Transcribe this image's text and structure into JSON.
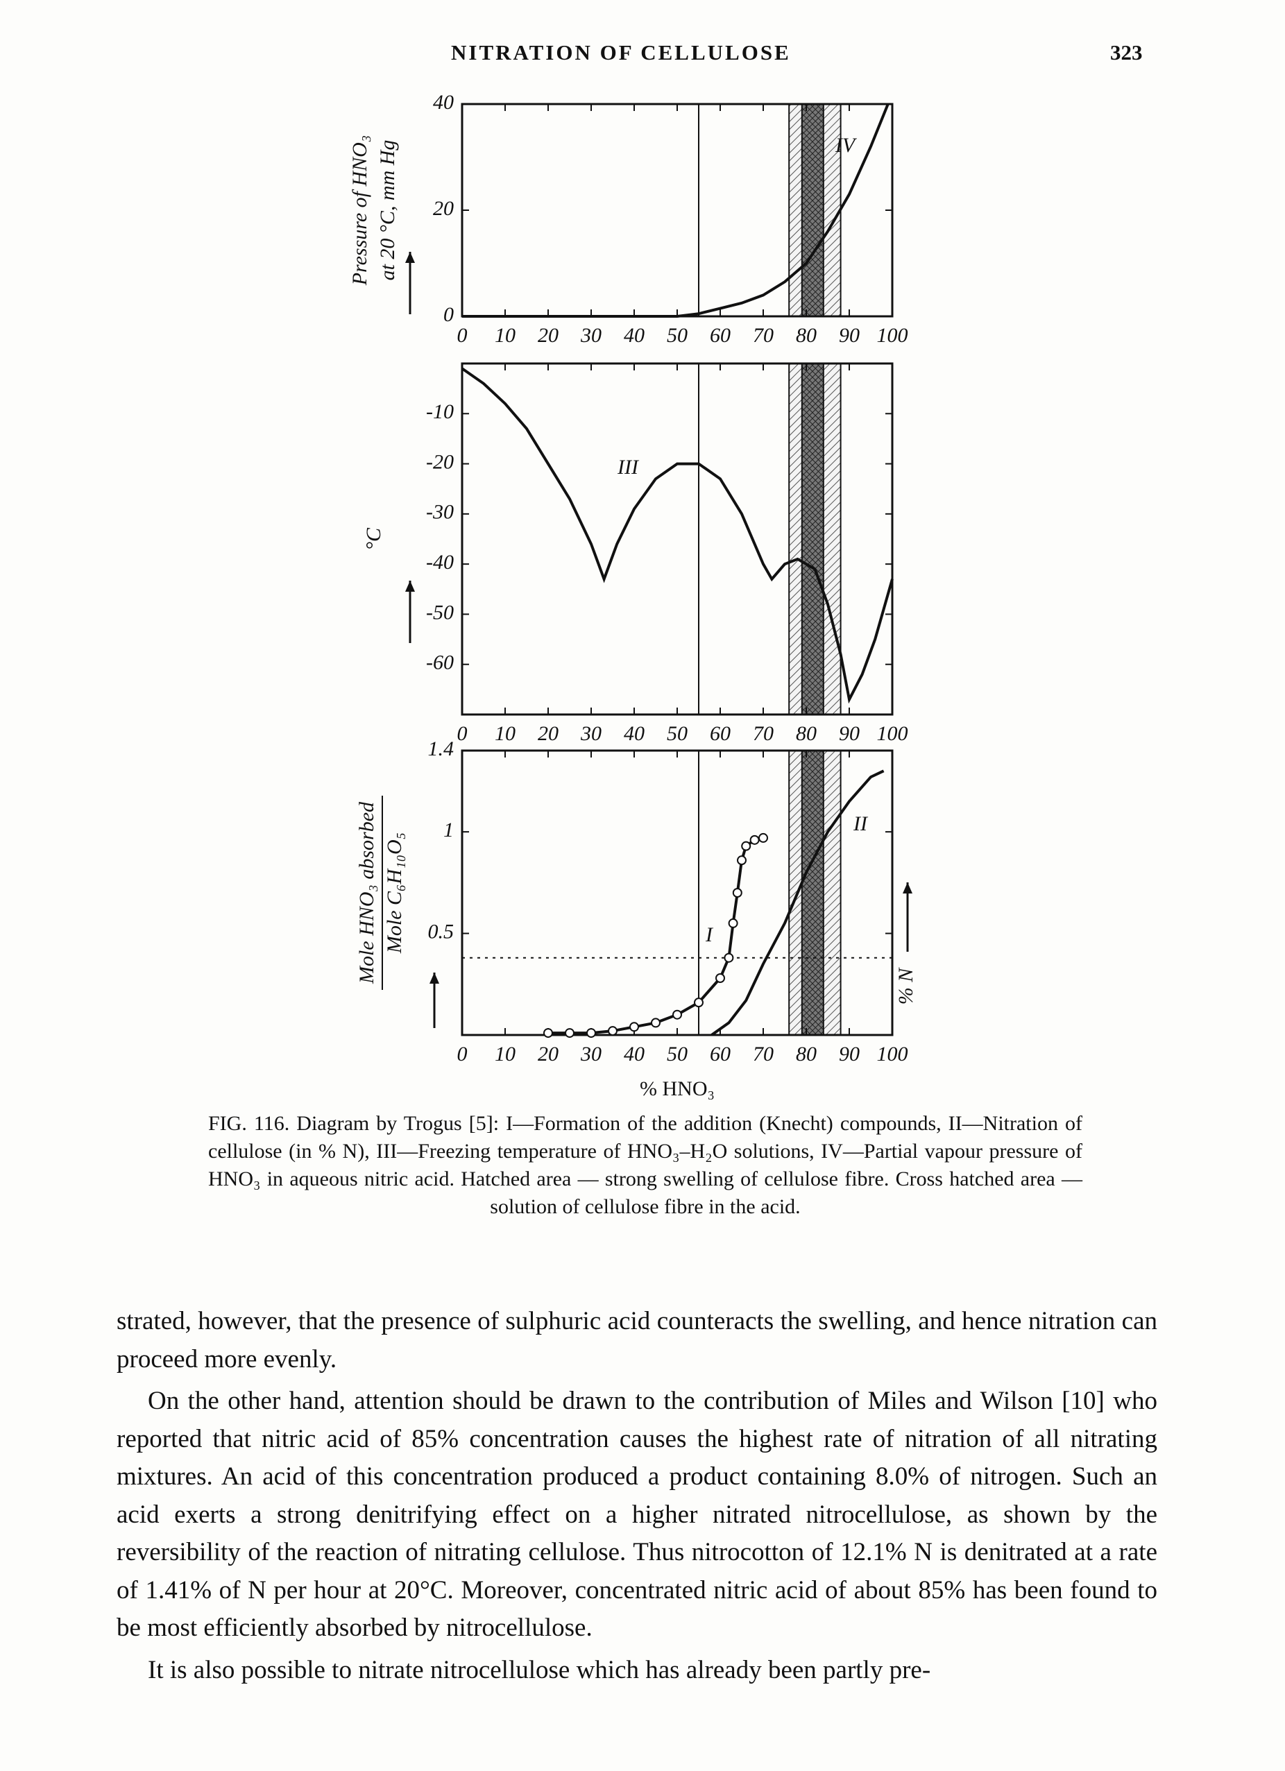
{
  "header": {
    "title": "NITRATION OF CELLULOSE",
    "page": "323"
  },
  "chart_data": [
    {
      "type": "line",
      "y_label": [
        "Pressure of HNO₃",
        "at 20 °C, mm Hg"
      ],
      "xlim": [
        0,
        100
      ],
      "xticks": [
        0,
        10,
        20,
        30,
        40,
        50,
        60,
        70,
        80,
        90,
        100
      ],
      "ylim": [
        0,
        40
      ],
      "yticks": [
        0,
        20,
        40
      ],
      "vline": 55,
      "regions": [
        {
          "kind": "hatched",
          "x": [
            76,
            88
          ]
        },
        {
          "kind": "cross-hatched",
          "x": [
            79,
            84
          ]
        }
      ],
      "series": [
        {
          "name": "IV",
          "color": "#111111",
          "x": [
            0,
            50,
            55,
            60,
            65,
            70,
            75,
            80,
            85,
            90,
            95,
            99
          ],
          "values": [
            0,
            0,
            0.5,
            1.5,
            2.5,
            4,
            6.5,
            10,
            16,
            23,
            32,
            40
          ]
        }
      ]
    },
    {
      "type": "line",
      "y_label": [
        "°C"
      ],
      "xlim": [
        0,
        100
      ],
      "xticks": [
        0,
        10,
        20,
        30,
        40,
        50,
        60,
        70,
        80,
        90,
        100
      ],
      "ylim": [
        -70,
        0
      ],
      "yticks": [
        -10,
        -20,
        -30,
        -40,
        -50,
        -60
      ],
      "vline": 55,
      "regions": [
        {
          "kind": "hatched",
          "x": [
            76,
            88
          ]
        },
        {
          "kind": "cross-hatched",
          "x": [
            79,
            84
          ]
        }
      ],
      "series": [
        {
          "name": "III",
          "color": "#111111",
          "x": [
            0,
            5,
            10,
            15,
            20,
            25,
            30,
            33,
            36,
            40,
            45,
            50,
            55,
            60,
            65,
            70,
            72,
            75,
            78,
            82,
            85,
            88,
            90,
            93,
            96,
            100
          ],
          "values": [
            -1,
            -4,
            -8,
            -13,
            -20,
            -27,
            -36,
            -43,
            -36,
            -29,
            -23,
            -20,
            -20,
            -23,
            -30,
            -40,
            -43,
            -40,
            -39,
            -41,
            -48,
            -58,
            -67,
            -62,
            -55,
            -43
          ]
        }
      ]
    },
    {
      "type": "line",
      "y_label": {
        "numerator": "Mole HNO₃ absorbed",
        "denominator": "Mole C₆H₁₀O₅"
      },
      "y2_label": "% N",
      "x_label": "% HNO₃",
      "xlim": [
        0,
        100
      ],
      "xticks": [
        0,
        10,
        20,
        30,
        40,
        50,
        60,
        70,
        80,
        90,
        100
      ],
      "ylim": [
        0,
        1.4
      ],
      "yticks": [
        0.5,
        1,
        1.4
      ],
      "vline": 55,
      "hline": 0.38,
      "regions": [
        {
          "kind": "hatched",
          "x": [
            76,
            88
          ]
        },
        {
          "kind": "cross-hatched",
          "x": [
            79,
            84
          ]
        }
      ],
      "series": [
        {
          "name": "I",
          "color": "#111111",
          "markers": true,
          "x": [
            20,
            25,
            30,
            35,
            40,
            45,
            50,
            55,
            60,
            62,
            63,
            64,
            65,
            66,
            68,
            70
          ],
          "values": [
            0.01,
            0.01,
            0.01,
            0.02,
            0.04,
            0.06,
            0.1,
            0.16,
            0.28,
            0.38,
            0.55,
            0.7,
            0.86,
            0.93,
            0.96,
            0.97
          ]
        },
        {
          "name": "II",
          "color": "#111111",
          "x": [
            58,
            62,
            66,
            70,
            75,
            80,
            85,
            90,
            95,
            98
          ],
          "values": [
            0,
            0.06,
            0.17,
            0.35,
            0.55,
            0.8,
            1.0,
            1.15,
            1.27,
            1.3
          ]
        }
      ]
    }
  ],
  "caption": "FIG. 116. Diagram by Trogus [5]: I—Formation of the addition (Knecht) compounds, II—Nitration of cellulose (in % N), III—Freezing temperature of HNO₃–H₂O solutions, IV—Partial vapour pressure of HNO₃ in aqueous nitric acid. Hatched area — strong swelling of cellulose fibre. Cross hatched area — solution of cellulose fibre in the acid.",
  "paragraphs": [
    "strated, however, that the presence of sulphuric acid counteracts the swelling, and hence nitration can proceed more evenly.",
    "On the other hand, attention should be drawn to the contribution of Miles and Wilson [10] who reported that nitric acid of 85% concentration causes the highest rate of nitration of all nitrating mixtures. An acid of this concentration produced a product containing 8.0% of nitrogen. Such an acid exerts a strong denitrifying effect on a higher nitrated nitrocellulose, as shown by the reversibility of the reaction of nitrating cellulose. Thus nitrocotton of 12.1% N is denitrated at a rate of 1.41% of N per hour at 20°C. Moreover, concentrated nitric acid of about 85% has been found to be most efficiently absorbed by nitrocellulose.",
    "It is also possible to nitrate nitrocellulose which has already been partly pre-"
  ]
}
